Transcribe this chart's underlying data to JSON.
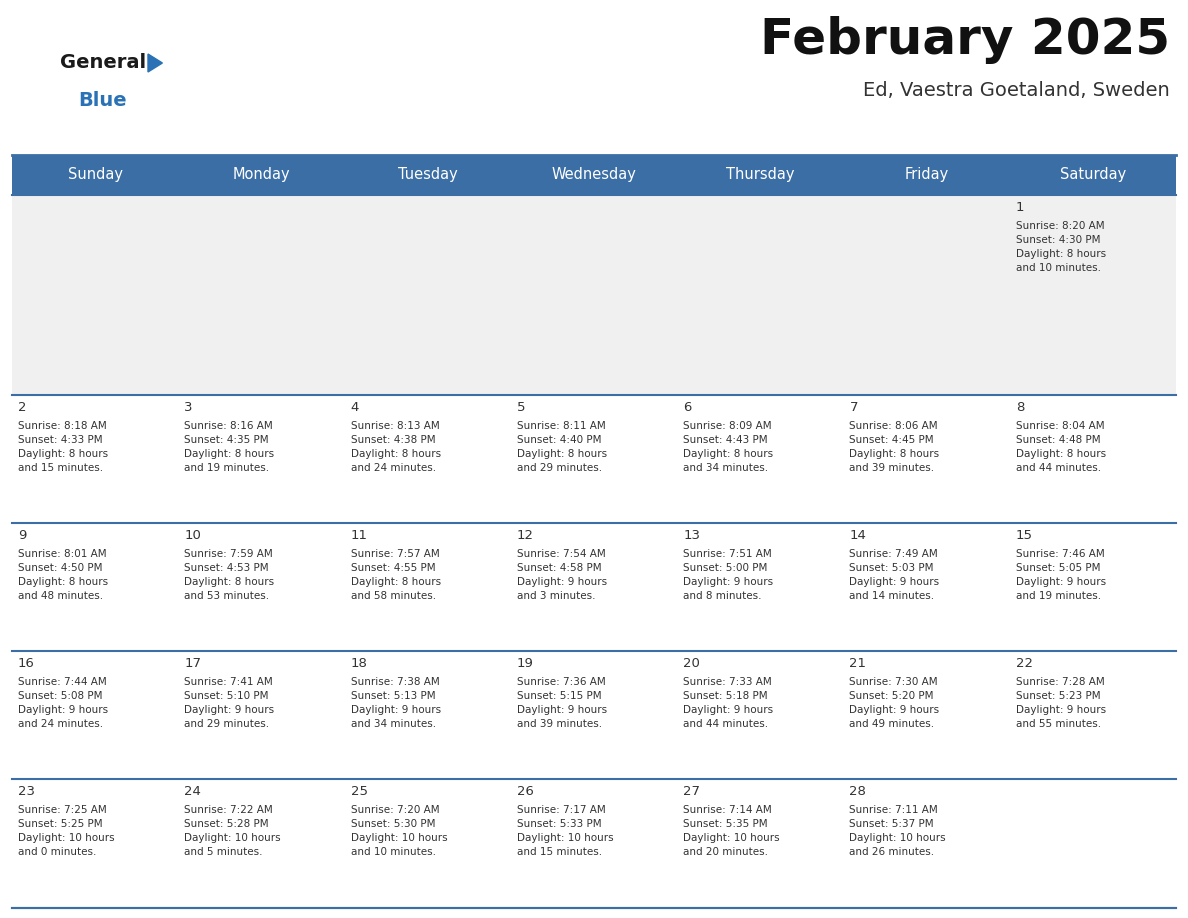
{
  "title": "February 2025",
  "subtitle": "Ed, Vaestra Goetaland, Sweden",
  "header_bg": "#3a6ea5",
  "header_text": "#ffffff",
  "cell_bg_light": "#f0f0f0",
  "cell_bg_white": "#ffffff",
  "text_color": "#333333",
  "day_headers": [
    "Sunday",
    "Monday",
    "Tuesday",
    "Wednesday",
    "Thursday",
    "Friday",
    "Saturday"
  ],
  "header_fontsize": 10.5,
  "day_num_fontsize": 9.5,
  "info_fontsize": 7.5,
  "logo_general_color": "#1a1a1a",
  "logo_blue_color": "#2a72b5",
  "logo_triangle_color": "#2a72b5",
  "days": [
    {
      "day": 1,
      "col": 6,
      "row": 0,
      "sunrise": "8:20 AM",
      "sunset": "4:30 PM",
      "daylight_h": "8 hours",
      "daylight_m": "and 10 minutes."
    },
    {
      "day": 2,
      "col": 0,
      "row": 1,
      "sunrise": "8:18 AM",
      "sunset": "4:33 PM",
      "daylight_h": "8 hours",
      "daylight_m": "and 15 minutes."
    },
    {
      "day": 3,
      "col": 1,
      "row": 1,
      "sunrise": "8:16 AM",
      "sunset": "4:35 PM",
      "daylight_h": "8 hours",
      "daylight_m": "and 19 minutes."
    },
    {
      "day": 4,
      "col": 2,
      "row": 1,
      "sunrise": "8:13 AM",
      "sunset": "4:38 PM",
      "daylight_h": "8 hours",
      "daylight_m": "and 24 minutes."
    },
    {
      "day": 5,
      "col": 3,
      "row": 1,
      "sunrise": "8:11 AM",
      "sunset": "4:40 PM",
      "daylight_h": "8 hours",
      "daylight_m": "and 29 minutes."
    },
    {
      "day": 6,
      "col": 4,
      "row": 1,
      "sunrise": "8:09 AM",
      "sunset": "4:43 PM",
      "daylight_h": "8 hours",
      "daylight_m": "and 34 minutes."
    },
    {
      "day": 7,
      "col": 5,
      "row": 1,
      "sunrise": "8:06 AM",
      "sunset": "4:45 PM",
      "daylight_h": "8 hours",
      "daylight_m": "and 39 minutes."
    },
    {
      "day": 8,
      "col": 6,
      "row": 1,
      "sunrise": "8:04 AM",
      "sunset": "4:48 PM",
      "daylight_h": "8 hours",
      "daylight_m": "and 44 minutes."
    },
    {
      "day": 9,
      "col": 0,
      "row": 2,
      "sunrise": "8:01 AM",
      "sunset": "4:50 PM",
      "daylight_h": "8 hours",
      "daylight_m": "and 48 minutes."
    },
    {
      "day": 10,
      "col": 1,
      "row": 2,
      "sunrise": "7:59 AM",
      "sunset": "4:53 PM",
      "daylight_h": "8 hours",
      "daylight_m": "and 53 minutes."
    },
    {
      "day": 11,
      "col": 2,
      "row": 2,
      "sunrise": "7:57 AM",
      "sunset": "4:55 PM",
      "daylight_h": "8 hours",
      "daylight_m": "and 58 minutes."
    },
    {
      "day": 12,
      "col": 3,
      "row": 2,
      "sunrise": "7:54 AM",
      "sunset": "4:58 PM",
      "daylight_h": "9 hours",
      "daylight_m": "and 3 minutes."
    },
    {
      "day": 13,
      "col": 4,
      "row": 2,
      "sunrise": "7:51 AM",
      "sunset": "5:00 PM",
      "daylight_h": "9 hours",
      "daylight_m": "and 8 minutes."
    },
    {
      "day": 14,
      "col": 5,
      "row": 2,
      "sunrise": "7:49 AM",
      "sunset": "5:03 PM",
      "daylight_h": "9 hours",
      "daylight_m": "and 14 minutes."
    },
    {
      "day": 15,
      "col": 6,
      "row": 2,
      "sunrise": "7:46 AM",
      "sunset": "5:05 PM",
      "daylight_h": "9 hours",
      "daylight_m": "and 19 minutes."
    },
    {
      "day": 16,
      "col": 0,
      "row": 3,
      "sunrise": "7:44 AM",
      "sunset": "5:08 PM",
      "daylight_h": "9 hours",
      "daylight_m": "and 24 minutes."
    },
    {
      "day": 17,
      "col": 1,
      "row": 3,
      "sunrise": "7:41 AM",
      "sunset": "5:10 PM",
      "daylight_h": "9 hours",
      "daylight_m": "and 29 minutes."
    },
    {
      "day": 18,
      "col": 2,
      "row": 3,
      "sunrise": "7:38 AM",
      "sunset": "5:13 PM",
      "daylight_h": "9 hours",
      "daylight_m": "and 34 minutes."
    },
    {
      "day": 19,
      "col": 3,
      "row": 3,
      "sunrise": "7:36 AM",
      "sunset": "5:15 PM",
      "daylight_h": "9 hours",
      "daylight_m": "and 39 minutes."
    },
    {
      "day": 20,
      "col": 4,
      "row": 3,
      "sunrise": "7:33 AM",
      "sunset": "5:18 PM",
      "daylight_h": "9 hours",
      "daylight_m": "and 44 minutes."
    },
    {
      "day": 21,
      "col": 5,
      "row": 3,
      "sunrise": "7:30 AM",
      "sunset": "5:20 PM",
      "daylight_h": "9 hours",
      "daylight_m": "and 49 minutes."
    },
    {
      "day": 22,
      "col": 6,
      "row": 3,
      "sunrise": "7:28 AM",
      "sunset": "5:23 PM",
      "daylight_h": "9 hours",
      "daylight_m": "and 55 minutes."
    },
    {
      "day": 23,
      "col": 0,
      "row": 4,
      "sunrise": "7:25 AM",
      "sunset": "5:25 PM",
      "daylight_h": "10 hours",
      "daylight_m": "and 0 minutes."
    },
    {
      "day": 24,
      "col": 1,
      "row": 4,
      "sunrise": "7:22 AM",
      "sunset": "5:28 PM",
      "daylight_h": "10 hours",
      "daylight_m": "and 5 minutes."
    },
    {
      "day": 25,
      "col": 2,
      "row": 4,
      "sunrise": "7:20 AM",
      "sunset": "5:30 PM",
      "daylight_h": "10 hours",
      "daylight_m": "and 10 minutes."
    },
    {
      "day": 26,
      "col": 3,
      "row": 4,
      "sunrise": "7:17 AM",
      "sunset": "5:33 PM",
      "daylight_h": "10 hours",
      "daylight_m": "and 15 minutes."
    },
    {
      "day": 27,
      "col": 4,
      "row": 4,
      "sunrise": "7:14 AM",
      "sunset": "5:35 PM",
      "daylight_h": "10 hours",
      "daylight_m": "and 20 minutes."
    },
    {
      "day": 28,
      "col": 5,
      "row": 4,
      "sunrise": "7:11 AM",
      "sunset": "5:37 PM",
      "daylight_h": "10 hours",
      "daylight_m": "and 26 minutes."
    }
  ]
}
